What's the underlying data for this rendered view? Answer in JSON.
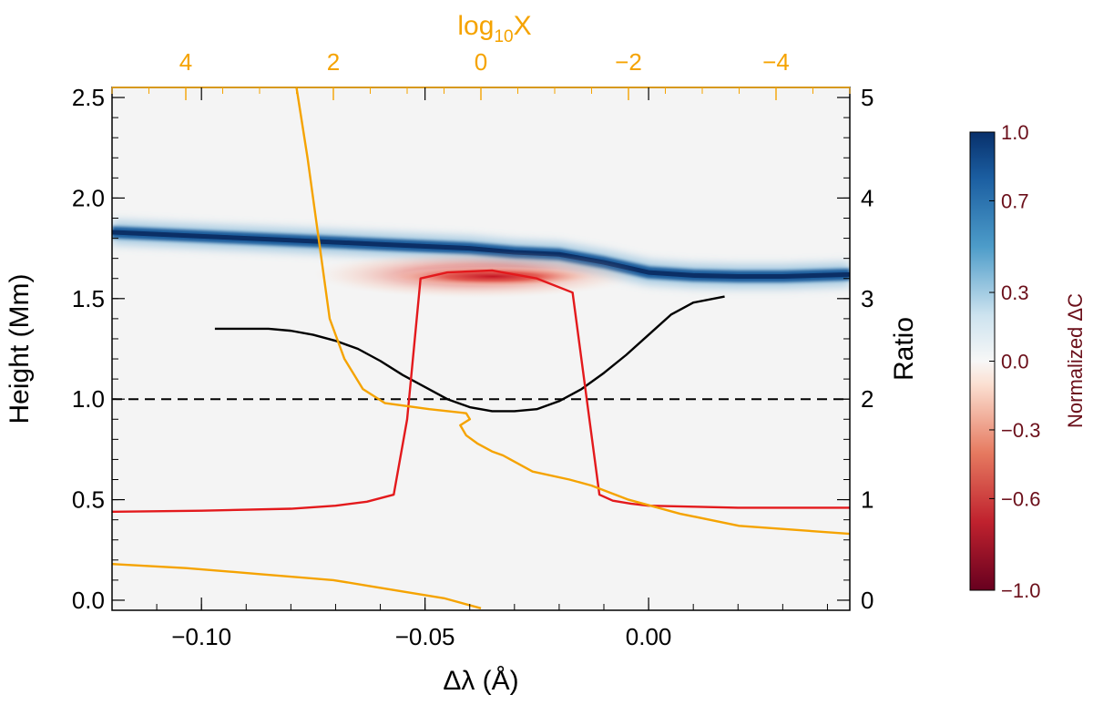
{
  "chart_data": {
    "type": "line",
    "heatmap": {
      "colorbar_label": "Normalized ΔC",
      "colorbar_ticks": [
        "1.0",
        "0.7",
        "0.3",
        "0.0",
        "−0.3",
        "−0.6",
        "−1.0"
      ],
      "colorbar_tick_values": [
        1.0,
        0.7,
        0.3,
        0.0,
        -0.3,
        -0.6,
        -1.0
      ],
      "colorbar_range": [
        -1.0,
        1.0
      ],
      "blue_ridge": {
        "x": [
          -0.12,
          -0.1,
          -0.08,
          -0.06,
          -0.04,
          -0.03,
          -0.02,
          -0.01,
          0.0,
          0.01,
          0.02,
          0.03,
          0.045
        ],
        "y": [
          1.83,
          1.81,
          1.79,
          1.77,
          1.75,
          1.73,
          1.72,
          1.68,
          1.63,
          1.615,
          1.61,
          1.61,
          1.62
        ]
      },
      "red_core": {
        "x_range": [
          -0.058,
          -0.015
        ],
        "y_center": 1.61
      }
    },
    "xlabel": "Δλ (Å)",
    "xlim": [
      -0.12,
      0.045
    ],
    "xticks": [
      -0.1,
      -0.05,
      0.0
    ],
    "xtick_labels": [
      "−0.10",
      "−0.05",
      "0.00"
    ],
    "ylabel": "Height (Mm)",
    "ylim": [
      -0.05,
      2.55
    ],
    "yticks": [
      0.0,
      0.5,
      1.0,
      1.5,
      2.0,
      2.5
    ],
    "ytick_labels": [
      "0.0",
      "0.5",
      "1.0",
      "1.5",
      "2.0",
      "2.5"
    ],
    "y2label": "Ratio",
    "y2lim": [
      -0.1,
      5.1
    ],
    "y2ticks": [
      0,
      1,
      2,
      3,
      4,
      5
    ],
    "y2tick_labels": [
      "0",
      "1",
      "2",
      "3",
      "4",
      "5"
    ],
    "x2label": "log10X",
    "x2lim": [
      5.0,
      -5.0
    ],
    "x2ticks": [
      4,
      2,
      0,
      -2,
      -4
    ],
    "x2tick_labels": [
      "4",
      "2",
      "0",
      "−2",
      "−4"
    ],
    "hline": {
      "y": 1.0,
      "style": "dashed",
      "color": "#000000"
    },
    "series": [
      {
        "color": "#000000",
        "axis": "x_bottom_y_left",
        "x": [
          -0.097,
          -0.09,
          -0.085,
          -0.08,
          -0.075,
          -0.07,
          -0.065,
          -0.06,
          -0.055,
          -0.05,
          -0.045,
          -0.04,
          -0.035,
          -0.03,
          -0.025,
          -0.02,
          -0.015,
          -0.01,
          -0.005,
          0.0,
          0.005,
          0.01,
          0.017
        ],
        "y": [
          1.35,
          1.35,
          1.35,
          1.34,
          1.32,
          1.29,
          1.25,
          1.19,
          1.12,
          1.06,
          1.0,
          0.96,
          0.94,
          0.94,
          0.95,
          0.99,
          1.05,
          1.13,
          1.22,
          1.32,
          1.42,
          1.48,
          1.51
        ]
      },
      {
        "color": "#e3191c",
        "axis": "x_bottom_y_right",
        "x": [
          -0.12,
          -0.1,
          -0.08,
          -0.07,
          -0.063,
          -0.057,
          -0.054,
          -0.051,
          -0.045,
          -0.035,
          -0.025,
          -0.017,
          -0.011,
          -0.008,
          -0.004,
          0.0,
          0.01,
          0.02,
          0.03,
          0.045
        ],
        "y": [
          0.88,
          0.89,
          0.91,
          0.94,
          0.98,
          1.05,
          1.8,
          3.2,
          3.26,
          3.28,
          3.2,
          3.06,
          1.05,
          0.99,
          0.96,
          0.94,
          0.93,
          0.92,
          0.92,
          0.92
        ]
      },
      {
        "color": "#f5a300",
        "axis": "x_top_y_left",
        "x": [
          2.5,
          2.35,
          2.2,
          2.05,
          1.85,
          1.6,
          1.3,
          0.7,
          0.2,
          0.15,
          0.28,
          0.2,
          0.05,
          -0.15,
          -0.3,
          -0.4,
          -0.7,
          -1.2,
          -1.5,
          -2.0,
          -2.7,
          -3.5,
          -5.0
        ],
        "y": [
          2.55,
          2.2,
          1.8,
          1.4,
          1.2,
          1.05,
          0.98,
          0.95,
          0.93,
          0.9,
          0.87,
          0.82,
          0.78,
          0.74,
          0.72,
          0.7,
          0.64,
          0.6,
          0.57,
          0.5,
          0.43,
          0.37,
          0.33
        ]
      },
      {
        "color": "#f5a300",
        "axis": "x_top_y_left",
        "x": [
          5.0,
          4.0,
          3.0,
          2.0,
          1.5,
          1.0,
          0.5,
          0.0
        ],
        "y": [
          0.18,
          0.16,
          0.13,
          0.1,
          0.07,
          0.04,
          0.01,
          -0.04
        ]
      }
    ],
    "colors": {
      "top_axis": "#f5a300",
      "colorbar_label": "#6b0f1a",
      "hline": "#000000"
    }
  }
}
